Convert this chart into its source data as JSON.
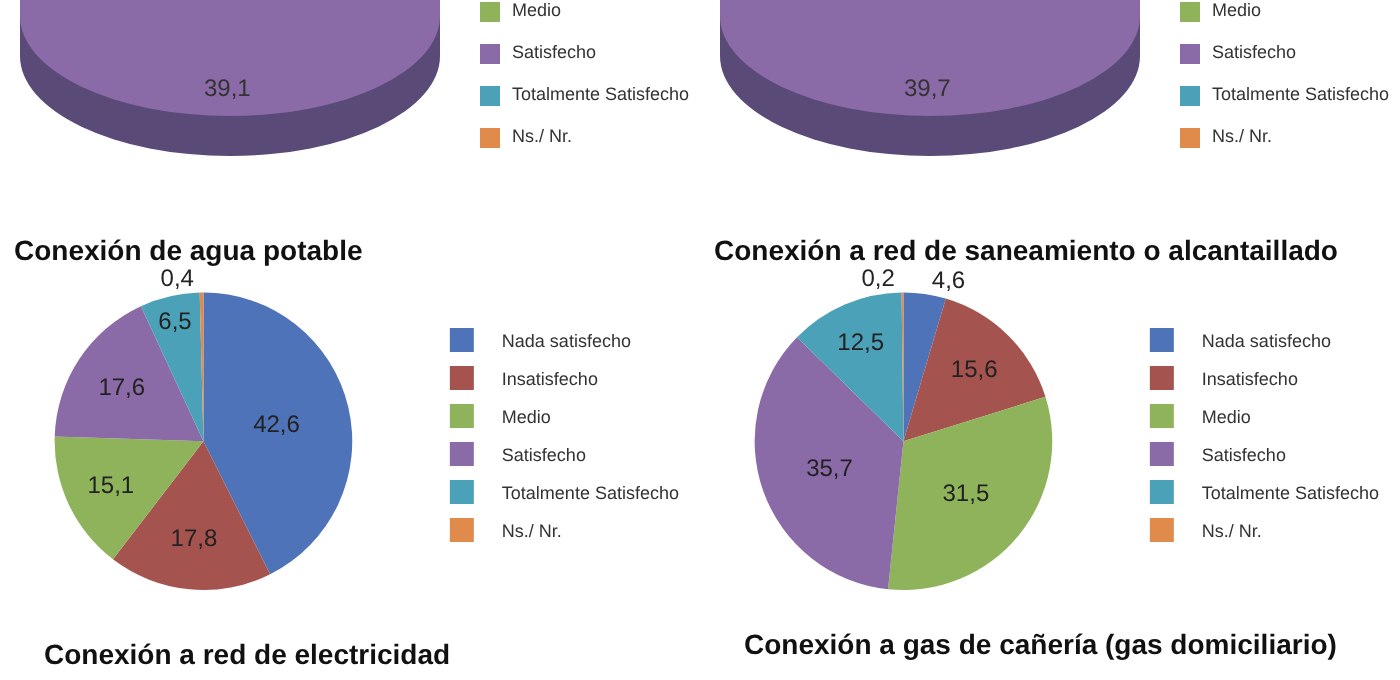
{
  "chart_data": [
    {
      "type": "other",
      "categories": [
        "Medio",
        "Satisfecho",
        "Totalmente Satisfecho",
        "Ns./ Nr."
      ],
      "colors": [
        "#8fb35a",
        "#8a6aa7",
        "#4ba2b8",
        "#e08a4c"
      ],
      "annotations": [
        "39,1"
      ]
    },
    {
      "type": "other",
      "categories": [
        "Medio",
        "Satisfecho",
        "Totalmente Satisfecho",
        "Ns./ Nr."
      ],
      "colors": [
        "#8fb35a",
        "#8a6aa7",
        "#4ba2b8",
        "#e08a4c"
      ],
      "annotations": [
        "39,7"
      ]
    },
    {
      "type": "pie",
      "title": "Conexión de agua potable",
      "categories": [
        "Nada satisfecho",
        "Insatisfecho",
        "Medio",
        "Satisfecho",
        "Totalmente Satisfecho",
        "Ns./ Nr."
      ],
      "values": [
        42.6,
        17.8,
        15.1,
        17.6,
        6.5,
        0.4
      ],
      "value_labels": [
        "42,6",
        "17,8",
        "15,1",
        "17,6",
        "6,5",
        "0,4"
      ],
      "colors": [
        "#4f73b8",
        "#a5534f",
        "#8fb35a",
        "#8a6aa7",
        "#4ba2b8",
        "#e08a4c"
      ],
      "legend": "right"
    },
    {
      "type": "pie",
      "title": "Conexión a red de saneamiento o alcantaillado",
      "categories": [
        "Nada satisfecho",
        "Insatisfecho",
        "Medio",
        "Satisfecho",
        "Totalmente Satisfecho",
        "Ns./ Nr."
      ],
      "values": [
        4.6,
        15.6,
        31.5,
        35.7,
        12.5,
        0.2
      ],
      "value_labels": [
        "4,6",
        "15,6",
        "31,5",
        "35,7",
        "12,5",
        "0,2"
      ],
      "colors": [
        "#4f73b8",
        "#a5534f",
        "#8fb35a",
        "#8a6aa7",
        "#4ba2b8",
        "#e08a4c"
      ],
      "legend": "right"
    },
    {
      "type": "other",
      "title": "Conexión a red de electricidad"
    },
    {
      "type": "other",
      "title": "Conexión a gas de cañería (gas domiciliario)"
    }
  ]
}
